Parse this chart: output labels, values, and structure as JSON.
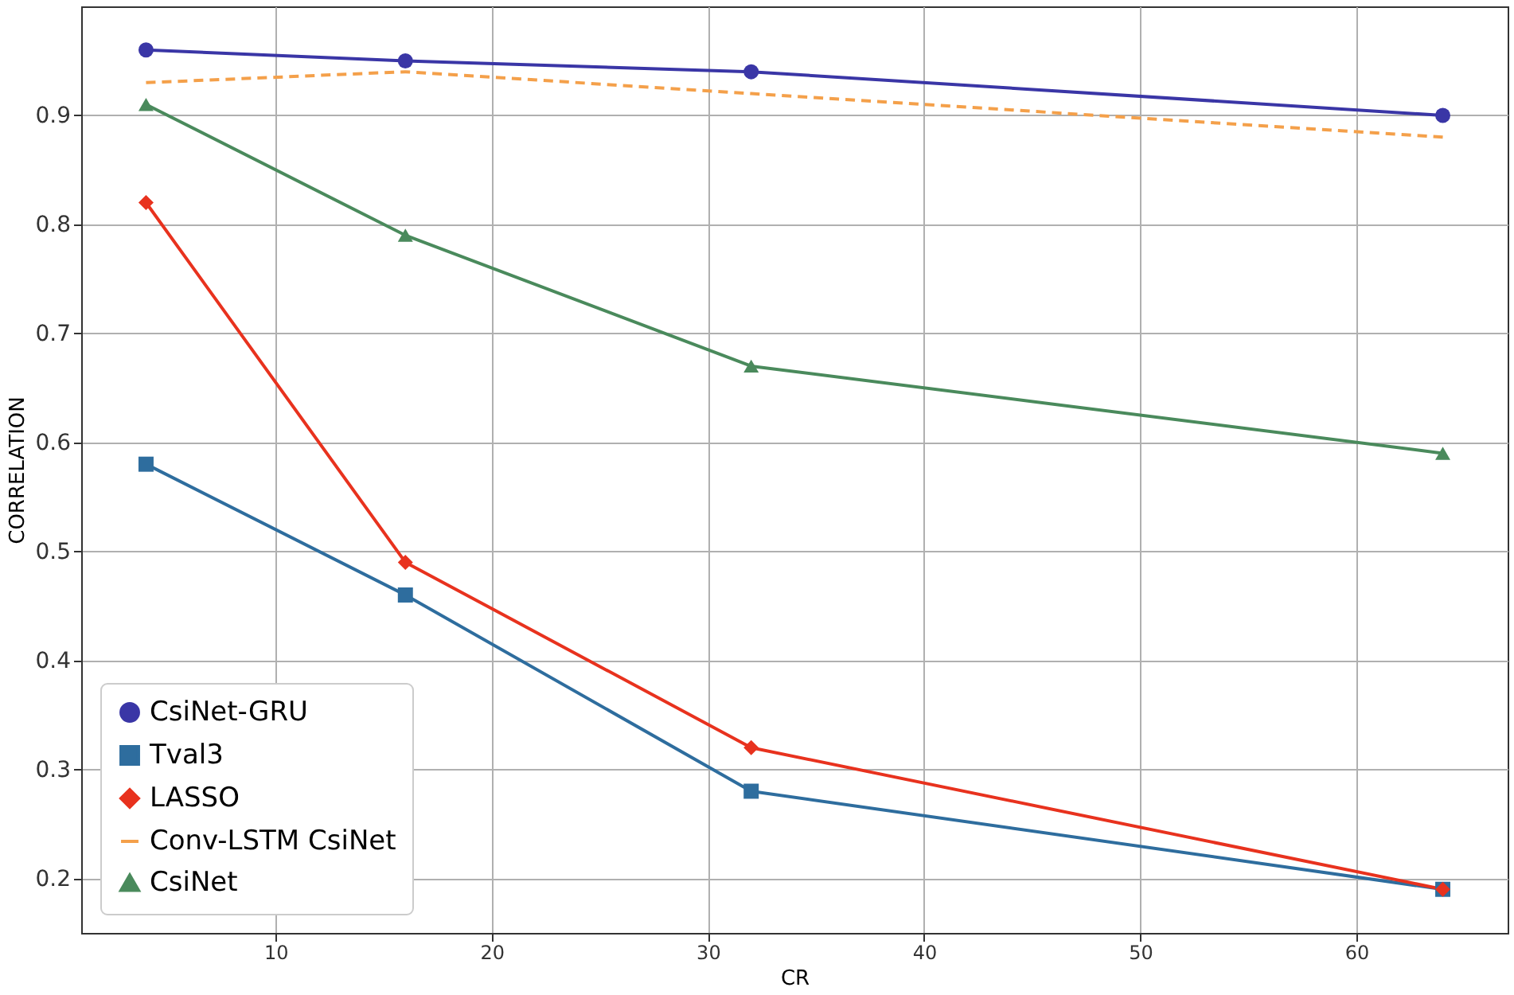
{
  "chart_data": {
    "type": "line",
    "xlabel": "CR",
    "ylabel": "CORRELATION",
    "x": [
      4,
      16,
      32,
      64
    ],
    "series": [
      {
        "name": "CsiNet-GRU",
        "color": "#3a36a6",
        "values": [
          0.96,
          0.95,
          0.94,
          0.9
        ],
        "marker": "circle",
        "line_style": "solid"
      },
      {
        "name": "Tval3",
        "color": "#2e6d9e",
        "values": [
          0.58,
          0.46,
          0.28,
          0.19
        ],
        "marker": "square",
        "line_style": "solid"
      },
      {
        "name": "LASSO",
        "color": "#e8321e",
        "values": [
          0.82,
          0.49,
          0.32,
          0.19
        ],
        "marker": "diamond",
        "line_style": "solid"
      },
      {
        "name": "Conv-LSTM CsiNet",
        "color": "#f4a04a",
        "values": [
          0.93,
          0.94,
          0.92,
          0.88
        ],
        "marker": "none",
        "line_style": "dashed"
      },
      {
        "name": "CsiNet",
        "color": "#4a8a5c",
        "values": [
          0.91,
          0.79,
          0.67,
          0.59
        ],
        "marker": "triangle",
        "line_style": "solid"
      }
    ],
    "xlim": [
      1,
      67
    ],
    "xticks": [
      10,
      20,
      30,
      40,
      50,
      60
    ],
    "ylim": [
      0.15,
      1.0
    ],
    "yticks": [
      0.2,
      0.3,
      0.4,
      0.5,
      0.6,
      0.7,
      0.8,
      0.9
    ],
    "grid": true,
    "legend": "bottom left"
  }
}
